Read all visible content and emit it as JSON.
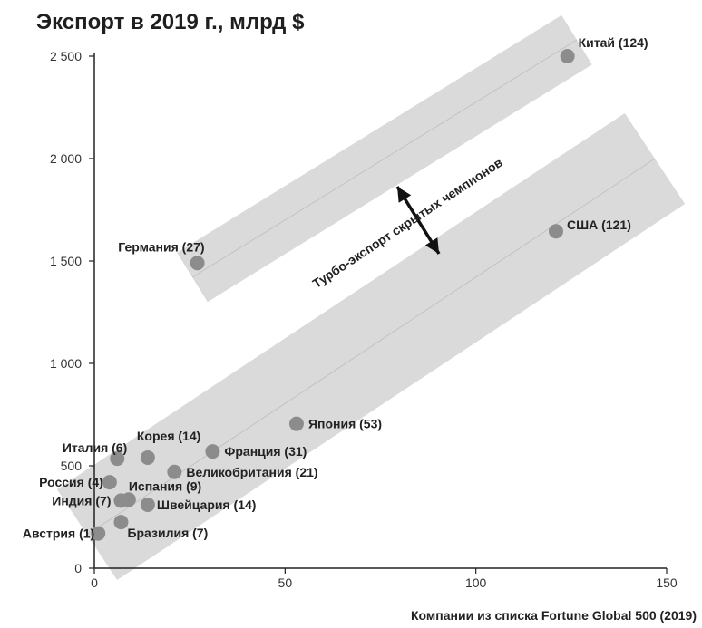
{
  "chart_data": {
    "type": "scatter",
    "title": "Экспорт в 2019 г., млрд $",
    "xlabel": "Компании из списка Fortune Global 500 (2019)",
    "ylabel": "",
    "xlim": [
      0,
      150
    ],
    "ylim": [
      0,
      2500
    ],
    "x_ticks": [
      0,
      50,
      100,
      150
    ],
    "x_tick_labels": [
      "0",
      "50",
      "100",
      "150"
    ],
    "y_ticks": [
      0,
      500,
      1000,
      1500,
      2000,
      2500
    ],
    "y_tick_labels": [
      "0",
      "500",
      "1 000",
      "1 500",
      "2 000",
      "2 500"
    ],
    "grid": false,
    "points": [
      {
        "label": "Китай (124)",
        "x": 124,
        "y": 2500
      },
      {
        "label": "США (121)",
        "x": 121,
        "y": 1645
      },
      {
        "label": "Германия (27)",
        "x": 27,
        "y": 1490
      },
      {
        "label": "Япония (53)",
        "x": 53,
        "y": 705
      },
      {
        "label": "Франция (31)",
        "x": 31,
        "y": 570
      },
      {
        "label": "Великобритания (21)",
        "x": 21,
        "y": 470
      },
      {
        "label": "Корея (14)",
        "x": 14,
        "y": 540
      },
      {
        "label": "Италия (6)",
        "x": 6,
        "y": 535
      },
      {
        "label": "Россия (4)",
        "x": 4,
        "y": 420
      },
      {
        "label": "Испания (9)",
        "x": 9,
        "y": 335
      },
      {
        "label": "Индия (7)",
        "x": 7,
        "y": 330
      },
      {
        "label": "Швейцария (14)",
        "x": 14,
        "y": 310
      },
      {
        "label": "Бразилия (7)",
        "x": 7,
        "y": 225
      },
      {
        "label": "Австрия (1)",
        "x": 1,
        "y": 170
      }
    ],
    "annotation": "Турбо-экспорт скрытых чемпионов",
    "colors": {
      "point": "#8c8c8c",
      "band": "#dadada",
      "band_line": "#c2c2c2",
      "axis": "#222222"
    }
  }
}
